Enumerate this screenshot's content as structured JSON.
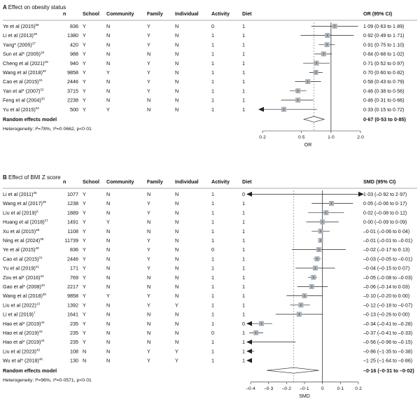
{
  "chart_data": [
    {
      "type": "forest",
      "panel_label": "A",
      "title": "Effect on obesity status",
      "columns": [
        "n",
        "School",
        "Community",
        "Family",
        "Individual",
        "Activity",
        "Diet"
      ],
      "effect_header": "OR (95% CI)",
      "xlabel": "OR",
      "x_scale": "log",
      "x_ticks": [
        "0·2",
        "0·5",
        "1·0",
        "2·0"
      ],
      "x_tick_values": [
        0.2,
        0.5,
        1.0,
        2.0
      ],
      "reference_line": 1.0,
      "pooled_line": 0.67,
      "studies": [
        {
          "study": "Ye et al (2015)",
          "ref": "55",
          "n": "836",
          "school": "Y",
          "community": "N",
          "family": "Y",
          "individual": "N",
          "activity": "0",
          "diet": "1",
          "est": 1.09,
          "lo": 0.63,
          "hi": 1.89,
          "ci_text": "1·09  (0·63 to 1·89)",
          "arrow": ""
        },
        {
          "study": "Li et al (2013)",
          "ref": "36",
          "n": "1380",
          "school": "Y",
          "community": "N",
          "family": "Y",
          "individual": "N",
          "activity": "1",
          "diet": "1",
          "est": 0.92,
          "lo": 0.49,
          "hi": 1.71,
          "ci_text": "0·92  (0·49 to 1·71)",
          "arrow": ""
        },
        {
          "study": "Yang* (2005)",
          "ref": "37",
          "n": "420",
          "school": "Y",
          "community": "N",
          "family": "Y",
          "individual": "N",
          "activity": "1",
          "diet": "1",
          "est": 0.91,
          "lo": 0.75,
          "hi": 1.1,
          "ci_text": "0·91  (0·75 to 1·10)",
          "arrow": ""
        },
        {
          "study": "Sun et al* (2005)",
          "ref": "28",
          "n": "988",
          "school": "Y",
          "community": "N",
          "family": "N",
          "individual": "N",
          "activity": "1",
          "diet": "1",
          "est": 0.84,
          "lo": 0.68,
          "hi": 1.02,
          "ci_text": "0·84  (0·68 to 1·02)",
          "arrow": ""
        },
        {
          "study": "Cheng et al (2021)",
          "ref": "29",
          "n": "940",
          "school": "Y",
          "community": "N",
          "family": "Y",
          "individual": "N",
          "activity": "1",
          "diet": "1",
          "est": 0.71,
          "lo": 0.52,
          "hi": 0.97,
          "ci_text": "0·71  (0·52 to 0·97)",
          "arrow": ""
        },
        {
          "study": "Wang et al (2018)",
          "ref": "30",
          "n": "9858",
          "school": "Y",
          "community": "Y",
          "family": "Y",
          "individual": "N",
          "activity": "1",
          "diet": "1",
          "est": 0.7,
          "lo": 0.6,
          "hi": 0.82,
          "ci_text": "0·70  (0·60 to 0·82)",
          "arrow": ""
        },
        {
          "study": "Cao et al (2015)",
          "ref": "31",
          "n": "2446",
          "school": "Y",
          "community": "N",
          "family": "Y",
          "individual": "N",
          "activity": "1",
          "diet": "1",
          "est": 0.58,
          "lo": 0.43,
          "hi": 0.79,
          "ci_text": "0·58  (0·43 to 0·79)",
          "arrow": ""
        },
        {
          "study": "Yan et al* (2007)",
          "ref": "32",
          "n": "3715",
          "school": "Y",
          "community": "N",
          "family": "Y",
          "individual": "N",
          "activity": "1",
          "diet": "1",
          "est": 0.46,
          "lo": 0.38,
          "hi": 0.56,
          "ci_text": "0·46  (0·38 to 0·56)",
          "arrow": ""
        },
        {
          "study": "Feng et al (2004)",
          "ref": "33",
          "n": "2238",
          "school": "Y",
          "community": "N",
          "family": "N",
          "individual": "N",
          "activity": "1",
          "diet": "1",
          "est": 0.46,
          "lo": 0.31,
          "hi": 0.66,
          "ci_text": "0·46  (0·31 to 0·66)",
          "arrow": ""
        },
        {
          "study": "Yu et al (2015)",
          "ref": "34",
          "n": "500",
          "school": "Y",
          "community": "Y",
          "family": "N",
          "individual": "N",
          "activity": "1",
          "diet": "1",
          "est": 0.33,
          "lo": 0.15,
          "hi": 0.72,
          "ci_text": "0·33  (0·15 to 0·72)",
          "arrow": "left"
        }
      ],
      "pooled": {
        "label": "Random effects model",
        "est": 0.67,
        "lo": 0.53,
        "hi": 0.85,
        "ci_text": "0·67  (0·53 to 0·85)"
      },
      "heterogeneity": "Heterogeneity: I²=78%, τ²=0·0662, p<0·01"
    },
    {
      "type": "forest",
      "panel_label": "B",
      "title": "Effect of BMI Z score",
      "columns": [
        "n",
        "School",
        "Community",
        "Family",
        "Individual",
        "Activity",
        "Diet"
      ],
      "effect_header": "SMD (95% CI)",
      "xlabel": "SMD",
      "x_scale": "linear",
      "x_ticks": [
        "–0·4",
        "–0·3",
        "–0·2",
        "–0·1",
        "0",
        "0·1",
        "0·2"
      ],
      "x_tick_values": [
        -0.4,
        -0.3,
        -0.2,
        -0.1,
        0,
        0.1,
        0.2
      ],
      "xlim": [
        -0.4,
        0.2
      ],
      "reference_line": 0,
      "pooled_line": -0.16,
      "studies": [
        {
          "study": "Li et al (2011)",
          "ref": "35",
          "n": "1077",
          "school": "Y",
          "community": "N",
          "family": "N",
          "individual": "N",
          "activity": "1",
          "diet": "0",
          "est": 1.03,
          "lo": -0.92,
          "hi": 2.97,
          "ci_text": "1·03  (–0·92 to 2·97)",
          "arrow": "both"
        },
        {
          "study": "Wang et al (2017)",
          "ref": "36",
          "n": "1238",
          "school": "Y",
          "community": "N",
          "family": "Y",
          "individual": "N",
          "activity": "1",
          "diet": "1",
          "est": 0.05,
          "lo": -0.06,
          "hi": 0.17,
          "ci_text": "0·05  (–0·06 to 0·17)",
          "arrow": ""
        },
        {
          "study": "Liu et al (2019)",
          "ref": "9",
          "n": "1889",
          "school": "Y",
          "community": "N",
          "family": "Y",
          "individual": "N",
          "activity": "1",
          "diet": "1",
          "est": 0.02,
          "lo": -0.08,
          "hi": 0.12,
          "ci_text": "0·02  (–0·08 to 0·12)",
          "arrow": ""
        },
        {
          "study": "Huang et al (2018)",
          "ref": "37",
          "n": "1491",
          "school": "Y",
          "community": "Y",
          "family": "N",
          "individual": "N",
          "activity": "1",
          "diet": "1",
          "est": 0.0,
          "lo": -0.09,
          "hi": 0.09,
          "ci_text": "0·00  (–0·09 to 0·09)",
          "arrow": ""
        },
        {
          "study": "Xu et al (2015)",
          "ref": "38",
          "n": "1108",
          "school": "Y",
          "community": "N",
          "family": "N",
          "individual": "N",
          "activity": "1",
          "diet": "1",
          "est": -0.01,
          "lo": -0.06,
          "hi": 0.04,
          "ci_text": "–0·01  (–0·06 to 0·04)",
          "arrow": ""
        },
        {
          "study": "Ning et al (2024)",
          "ref": "39",
          "n": "11739",
          "school": "Y",
          "community": "N",
          "family": "Y",
          "individual": "N",
          "activity": "1",
          "diet": "1",
          "est": -0.01,
          "lo": -0.01,
          "hi": -0.01,
          "ci_text": "–0·01  (–0·01 to –0·01)",
          "arrow": ""
        },
        {
          "study": "Ye et al (2015)",
          "ref": "40",
          "n": "836",
          "school": "Y",
          "community": "N",
          "family": "Y",
          "individual": "N",
          "activity": "0",
          "diet": "1",
          "est": -0.02,
          "lo": -0.17,
          "hi": 0.13,
          "ci_text": "–0·02  (–0·17 to 0·13)",
          "arrow": ""
        },
        {
          "study": "Cao et al (2015)",
          "ref": "31",
          "n": "2446",
          "school": "Y",
          "community": "N",
          "family": "Y",
          "individual": "N",
          "activity": "1",
          "diet": "1",
          "est": -0.03,
          "lo": -0.05,
          "hi": -0.01,
          "ci_text": "–0·03  (–0·05 to –0·01)",
          "arrow": ""
        },
        {
          "study": "Yu et al (2019)",
          "ref": "41",
          "n": "171",
          "school": "Y",
          "community": "N",
          "family": "Y",
          "individual": "N",
          "activity": "1",
          "diet": "1",
          "est": -0.04,
          "lo": -0.15,
          "hi": 0.07,
          "ci_text": "–0·04  (–0·15 to 0·07)",
          "arrow": ""
        },
        {
          "study": "Zou et al* (2016)",
          "ref": "42",
          "n": "769",
          "school": "Y",
          "community": "N",
          "family": "N",
          "individual": "N",
          "activity": "1",
          "diet": "1",
          "est": -0.05,
          "lo": -0.08,
          "hi": -0.03,
          "ci_text": "–0·05  (–0·08 to –0·03)",
          "arrow": ""
        },
        {
          "study": "Gao et al* (2008)",
          "ref": "43",
          "n": "2217",
          "school": "Y",
          "community": "N",
          "family": "N",
          "individual": "N",
          "activity": "1",
          "diet": "1",
          "est": -0.06,
          "lo": -0.14,
          "hi": 0.03,
          "ci_text": "–0·06  (–0·14 to 0·03)",
          "arrow": ""
        },
        {
          "study": "Wang et al (2018)",
          "ref": "30",
          "n": "9858",
          "school": "Y",
          "community": "Y",
          "family": "Y",
          "individual": "N",
          "activity": "1",
          "diet": "1",
          "est": -0.1,
          "lo": -0.2,
          "hi": 0.0,
          "ci_text": "–0·10  (–0·20 to 0·00)",
          "arrow": ""
        },
        {
          "study": "Liu et al (2022)",
          "ref": "13",
          "n": "1392",
          "school": "Y",
          "community": "N",
          "family": "Y",
          "individual": "Y",
          "activity": "1",
          "diet": "1",
          "est": -0.12,
          "lo": -0.18,
          "hi": -0.07,
          "ci_text": "–0·12  (–0·18 to –0·07)",
          "arrow": ""
        },
        {
          "study": "Li et al (2019)",
          "ref": "7",
          "n": "1641",
          "school": "Y",
          "community": "N",
          "family": "N",
          "individual": "N",
          "activity": "1",
          "diet": "1",
          "est": -0.13,
          "lo": -0.26,
          "hi": 0.0,
          "ci_text": "–0·13  (–0·26 to 0·00)",
          "arrow": ""
        },
        {
          "study": "Hao et al* (2019)",
          "ref": "44",
          "n": "235",
          "school": "Y",
          "community": "N",
          "family": "N",
          "individual": "N",
          "activity": "1",
          "diet": "0",
          "est": -0.34,
          "lo": -0.41,
          "hi": -0.28,
          "ci_text": "–0·34  (–0·41 to –0·28)",
          "arrow": "left"
        },
        {
          "study": "Hao et al (2019)",
          "ref": "44",
          "n": "235",
          "school": "Y",
          "community": "N",
          "family": "N",
          "individual": "N",
          "activity": "0",
          "diet": "1",
          "est": -0.37,
          "lo": -0.41,
          "hi": -0.33,
          "ci_text": "–0·37  (–0·41 to –0·33)",
          "arrow": ""
        },
        {
          "study": "Hao et al* (2019)",
          "ref": "44",
          "n": "235",
          "school": "Y",
          "community": "N",
          "family": "N",
          "individual": "N",
          "activity": "1",
          "diet": "1",
          "est": -0.56,
          "lo": -0.96,
          "hi": -0.15,
          "ci_text": "–0·56  (–0·96 to –0·15)",
          "arrow": "left"
        },
        {
          "study": "Liu et al (2023)",
          "ref": "45",
          "n": "108",
          "school": "N",
          "community": "N",
          "family": "Y",
          "individual": "Y",
          "activity": "1",
          "diet": "1",
          "est": -0.86,
          "lo": -1.35,
          "hi": -0.38,
          "ci_text": "–0·86  (–1·35 to –0·38)",
          "arrow": "left"
        },
        {
          "study": "Wu et al* (2018)",
          "ref": "46",
          "n": "130",
          "school": "N",
          "community": "N",
          "family": "Y",
          "individual": "Y",
          "activity": "1",
          "diet": "1",
          "est": -1.25,
          "lo": -1.64,
          "hi": -0.86,
          "ci_text": "–1·25  (–1·64 to –0·86)",
          "arrow": "left"
        }
      ],
      "pooled": {
        "label": "Random effects model",
        "est": -0.16,
        "lo": -0.31,
        "hi": -0.02,
        "ci_text": "–0·16  (–0·31 to –0·02)"
      },
      "heterogeneity": "Heterogeneity: I²=96%, τ²=0·0571, p<0·01"
    }
  ],
  "colors": {
    "text": "#111111",
    "box": "#a9b0b8",
    "line": "#222222",
    "ref_line": "#333333",
    "pooled_line": "#777777",
    "divider": "#555555"
  }
}
